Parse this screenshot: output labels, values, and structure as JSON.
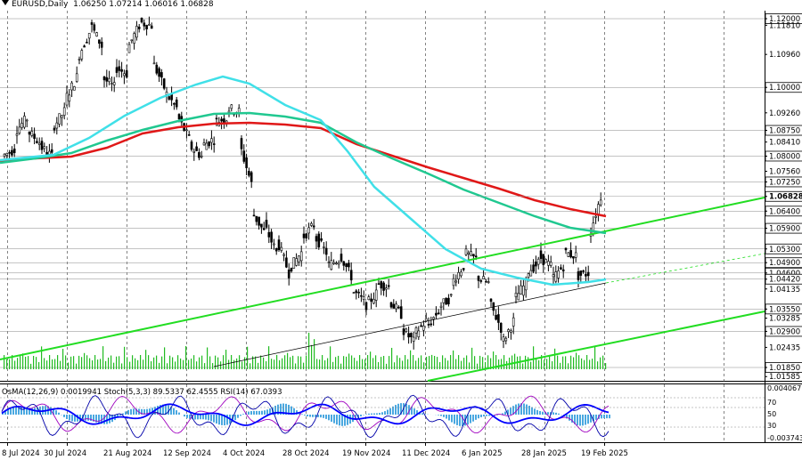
{
  "header": {
    "symbol": "EURUSD,Daily",
    "ohlc": "1.06250 1.07214 1.06016 1.06828"
  },
  "indicators_label": "OsMA(12,26,9) 0.0019941  Stoch(5,3,3) 89.5337 62.4555  RSI(14) 67.0393",
  "colors": {
    "candle": "#000000",
    "ema50": "#40e0e8",
    "ema144": "#20c890",
    "ema200": "#e01818",
    "trend": "#22dd22",
    "volume": "#22bb22",
    "osma": "#4aa8e0",
    "stoch_main": "#0000aa",
    "stoch_signal": "#a000c0",
    "rsi": "#0000ff"
  },
  "chart_data": {
    "type": "candlestick",
    "price_axis_labels": [
      "1.12000",
      "1.11810",
      "1.10960",
      "1.10000",
      "1.09260",
      "1.08750",
      "1.08410",
      "1.08000",
      "1.07560",
      "1.07250",
      "1.06828",
      "1.06400",
      "1.05900",
      "1.05300",
      "1.04900",
      "1.04600",
      "1.04420",
      "1.04135",
      "1.03550",
      "1.03285",
      "1.02900",
      "1.02435",
      "1.01850",
      "1.01585"
    ],
    "price_boxed": [
      "1.12000",
      "1.10000",
      "1.08750",
      "1.08000",
      "1.07250",
      "1.06828",
      "1.06400",
      "1.05900",
      "1.05300",
      "1.04900",
      "1.04600",
      "1.04420",
      "1.03550",
      "1.02900",
      "1.01850"
    ],
    "indicator_axis_labels": [
      "0.004067",
      "70",
      "50",
      "30",
      "-0.003743"
    ],
    "date_labels": [
      "8 Jul 2024",
      "30 Jul 2024",
      "21 Aug 2024",
      "12 Sep 2024",
      "4 Oct 2024",
      "28 Oct 2024",
      "19 Nov 2024",
      "11 Dec 2024",
      "6 Jan 2025",
      "28 Jan 2025",
      "19 Feb 2025"
    ],
    "current_price": 1.06828,
    "close_trajectory": [
      [
        1.08,
        1.082
      ],
      [
        1.087,
        1.091
      ],
      [
        1.0875,
        1.084
      ],
      [
        1.083,
        1.08
      ],
      [
        1.088,
        1.093
      ],
      [
        1.096,
        1.103
      ],
      [
        1.108,
        1.116
      ],
      [
        1.119,
        1.112
      ],
      [
        1.103,
        1.1
      ],
      [
        1.106,
        1.104
      ],
      [
        1.111,
        1.118
      ],
      [
        1.119,
        1.118
      ],
      [
        1.108,
        1.1
      ],
      [
        1.099,
        1.094
      ],
      [
        1.092,
        1.085
      ],
      [
        1.083,
        1.08
      ],
      [
        1.083,
        1.085
      ],
      [
        1.09,
        1.091
      ],
      [
        1.094,
        1.093
      ],
      [
        1.084,
        1.072
      ],
      [
        1.064,
        1.058
      ],
      [
        1.06,
        1.052
      ],
      [
        1.056,
        1.046
      ],
      [
        1.047,
        1.052
      ],
      [
        1.056,
        1.06
      ],
      [
        1.057,
        1.052
      ],
      [
        1.048,
        1.05
      ],
      [
        1.052,
        1.045
      ],
      [
        1.041,
        1.038
      ],
      [
        1.036,
        1.04
      ],
      [
        1.043,
        1.042
      ],
      [
        1.038,
        1.034
      ],
      [
        1.03,
        1.026
      ],
      [
        1.028,
        1.032
      ],
      [
        1.03,
        1.035
      ],
      [
        1.036,
        1.039
      ],
      [
        1.043,
        1.048
      ],
      [
        1.052,
        1.05
      ],
      [
        1.045,
        1.043
      ],
      [
        1.038,
        1.03
      ],
      [
        1.025,
        1.032
      ],
      [
        1.038,
        1.043
      ],
      [
        1.046,
        1.049
      ],
      [
        1.051,
        1.048
      ],
      [
        1.044,
        1.048
      ],
      [
        1.052,
        1.051
      ],
      [
        1.045,
        1.046
      ],
      [
        1.056,
        1.0683
      ]
    ]
  }
}
